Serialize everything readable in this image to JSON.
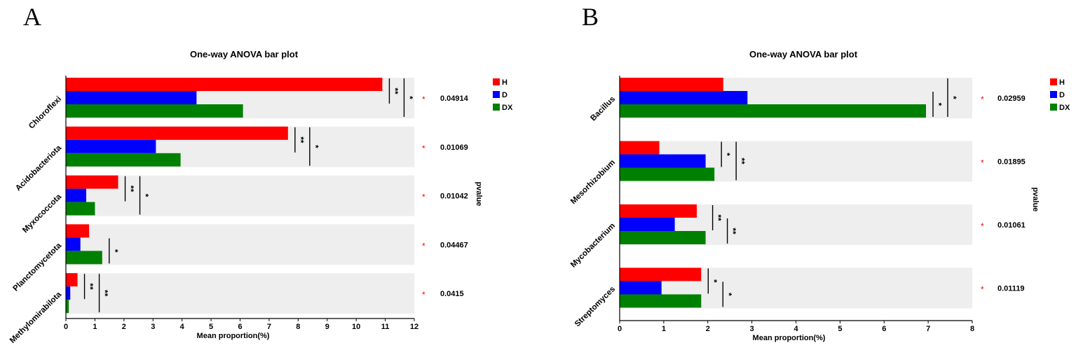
{
  "colors": {
    "H": "#ff0000",
    "D": "#0000ff",
    "DX": "#008000",
    "band": "#eeeeee",
    "star": "#ff0000"
  },
  "chart_data": [
    {
      "panel": "A",
      "type": "bar",
      "orientation": "horizontal",
      "title": "One-way ANOVA bar plot",
      "xlabel": "Mean proportion(%)",
      "ylabel": "",
      "pvalue_label": "pvalue",
      "xlim": [
        0,
        12
      ],
      "xticks": [
        "0",
        "1",
        "2",
        "3",
        "4",
        "5",
        "6",
        "7",
        "8",
        "9",
        "10",
        "11",
        "12"
      ],
      "legend": [
        "H",
        "D",
        "DX"
      ],
      "legend_position": "top-right",
      "categories": [
        {
          "name": "Chloroflexi",
          "values": [
            10.9,
            4.5,
            6.1
          ],
          "pvalue": "0.04914",
          "pstar": "*",
          "sig": [
            {
              "pair": "H-D",
              "label": "**"
            },
            {
              "pair": "H-DX",
              "label": "*"
            }
          ]
        },
        {
          "name": "Acidobacteriota",
          "values": [
            7.65,
            3.1,
            3.95
          ],
          "pvalue": "0.01069",
          "pstar": "*",
          "sig": [
            {
              "pair": "H-D",
              "label": "**"
            },
            {
              "pair": "H-DX",
              "label": "*"
            }
          ]
        },
        {
          "name": "Myxococcota",
          "values": [
            1.8,
            0.7,
            1.0
          ],
          "pvalue": "0.01042",
          "pstar": "*",
          "sig": [
            {
              "pair": "H-D",
              "label": "**"
            },
            {
              "pair": "H-DX",
              "label": "*"
            }
          ]
        },
        {
          "name": "Planctomycetota",
          "values": [
            0.8,
            0.5,
            1.25
          ],
          "pvalue": "0.04467",
          "pstar": "*",
          "sig": [
            {
              "pair": "D-DX",
              "label": "*"
            }
          ]
        },
        {
          "name": "Methylomirabilota",
          "values": [
            0.4,
            0.15,
            0.1
          ],
          "pvalue": "0.0415",
          "pstar": "*",
          "sig": [
            {
              "pair": "H-D",
              "label": "**"
            },
            {
              "pair": "H-DX",
              "label": "**"
            }
          ]
        }
      ]
    },
    {
      "panel": "B",
      "type": "bar",
      "orientation": "horizontal",
      "title": "One-way ANOVA bar plot",
      "xlabel": "Mean proportion(%)",
      "ylabel": "",
      "pvalue_label": "pvalue",
      "xlim": [
        0,
        8
      ],
      "xticks": [
        "0",
        "1",
        "2",
        "3",
        "4",
        "5",
        "6",
        "7",
        "8"
      ],
      "legend": [
        "H",
        "D",
        "DX"
      ],
      "legend_position": "top-right",
      "categories": [
        {
          "name": "Bacillus",
          "values": [
            2.35,
            2.9,
            6.95
          ],
          "pvalue": "0.02959",
          "pstar": "*",
          "sig": [
            {
              "pair": "D-DX",
              "label": "*"
            },
            {
              "pair": "H-DX",
              "label": "*"
            }
          ]
        },
        {
          "name": "Mesorhizobium",
          "values": [
            0.9,
            1.95,
            2.15
          ],
          "pvalue": "0.01895",
          "pstar": "*",
          "sig": [
            {
              "pair": "H-D",
              "label": "*"
            },
            {
              "pair": "H-DX",
              "label": "**"
            }
          ]
        },
        {
          "name": "Mycobacterium",
          "values": [
            1.75,
            1.25,
            1.95
          ],
          "pvalue": "0.01061",
          "pstar": "*",
          "sig": [
            {
              "pair": "H-D",
              "label": "**"
            },
            {
              "pair": "D-DX",
              "label": "**"
            }
          ]
        },
        {
          "name": "Streptomyces",
          "values": [
            1.85,
            0.95,
            1.85
          ],
          "pvalue": "0.01119",
          "pstar": "*",
          "sig": [
            {
              "pair": "H-D",
              "label": "*"
            },
            {
              "pair": "D-DX",
              "label": "*"
            }
          ]
        }
      ]
    }
  ]
}
